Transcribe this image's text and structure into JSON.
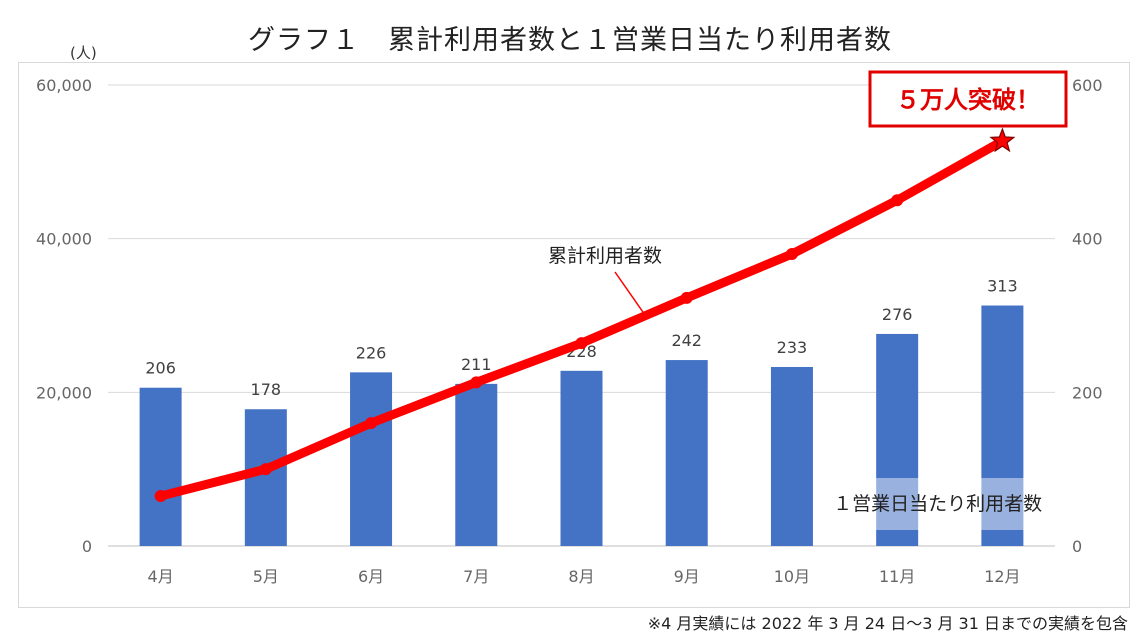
{
  "title": "グラフ１　累計利用者数と１営業日当たり利用者数",
  "unit_label": "(人)",
  "footnote": "※4 月実績には 2022 年 3 月 24 日～3 月 31 日までの実績を包含",
  "callout": "５万人突破！",
  "colors": {
    "bar": "#4472c4",
    "line": "#ff0000",
    "callout": "#e00000"
  },
  "chart_data": {
    "type": "bar+line",
    "categories": [
      "4月",
      "5月",
      "6月",
      "7月",
      "8月",
      "9月",
      "10月",
      "11月",
      "12月"
    ],
    "series": [
      {
        "name": "１営業日当たり利用者数",
        "type": "bar",
        "axis": "right",
        "values": [
          206,
          178,
          226,
          211,
          228,
          242,
          233,
          276,
          313
        ]
      },
      {
        "name": "累計利用者数",
        "type": "line",
        "axis": "left",
        "values": [
          6500,
          10000,
          16000,
          21300,
          26400,
          32300,
          38000,
          45000,
          52700
        ]
      }
    ],
    "y_left": {
      "min": 0,
      "max": 60000,
      "ticks": [
        "0",
        "20,000",
        "40,000",
        "60,000"
      ],
      "tick_values": [
        0,
        20000,
        40000,
        60000
      ]
    },
    "y_right": {
      "min": 0,
      "max": 600,
      "ticks": [
        "0",
        "200",
        "400",
        "600"
      ],
      "tick_values": [
        0,
        200,
        400,
        600
      ]
    },
    "grid": true
  }
}
